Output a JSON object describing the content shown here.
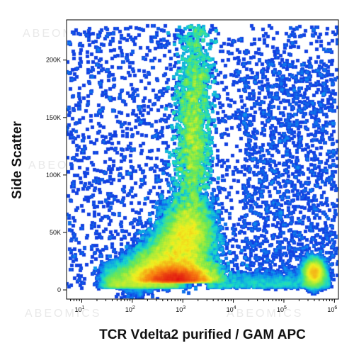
{
  "chart_data": {
    "type": "scatter",
    "title": "",
    "xlabel": "TCR Vdelta2 purified / GAM APC",
    "ylabel": "Side Scatter",
    "x_scale": "log",
    "xlim": [
      5,
      1200000
    ],
    "ylim": [
      -8000,
      235000
    ],
    "x_ticks": [
      {
        "value": 10,
        "base": "10",
        "exp": "1"
      },
      {
        "value": 100,
        "base": "10",
        "exp": "2"
      },
      {
        "value": 1000,
        "base": "10",
        "exp": "3"
      },
      {
        "value": 10000,
        "base": "10",
        "exp": "4"
      },
      {
        "value": 100000,
        "base": "10",
        "exp": "5"
      },
      {
        "value": 1000000,
        "base": "10",
        "exp": "6"
      }
    ],
    "y_ticks": [
      {
        "value": 0,
        "label": "0"
      },
      {
        "value": 50000,
        "label": "50K"
      },
      {
        "value": 100000,
        "label": "100K"
      },
      {
        "value": 150000,
        "label": "150K"
      },
      {
        "value": 200000,
        "label": "200K"
      }
    ],
    "density_colormap": [
      "#1616d8",
      "#0c8cf0",
      "#18d8c8",
      "#70e850",
      "#f0f020",
      "#f88010",
      "#e01010"
    ],
    "populations": [
      {
        "name_visible": false,
        "x_center": 700,
        "y_center": 8000,
        "density": "very high"
      },
      {
        "name_visible": false,
        "x_center": 1600,
        "y_center": 140000,
        "density": "high"
      },
      {
        "name_visible": false,
        "x_center": 1500,
        "y_center": 50000,
        "density": "medium"
      },
      {
        "name_visible": false,
        "x_center": 400000,
        "y_center": 15000,
        "density": "medium"
      }
    ],
    "grid": false,
    "legend": "none"
  },
  "watermark": "ABEOMICS"
}
